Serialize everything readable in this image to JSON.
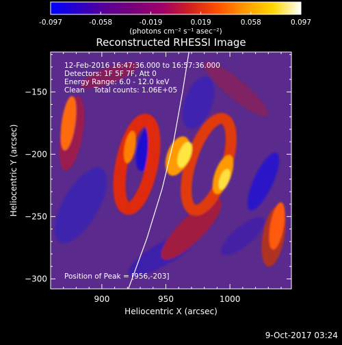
{
  "colorbar": {
    "min": -0.097,
    "max": 0.097,
    "tick_labels": [
      "-0.097",
      "-0.058",
      "-0.019",
      "0.019",
      "0.058",
      "0.097"
    ],
    "unit_label": "(photons cm⁻² s⁻¹ asec⁻²)",
    "gradient_colors": [
      "#0000ff",
      "#2a00c8",
      "#5a0096",
      "#7a0078",
      "#a0006a",
      "#d02020",
      "#ff5000",
      "#ff9a00",
      "#ffd800",
      "#ffffff"
    ]
  },
  "title": "Reconstructed RHESSI Image",
  "overlay": {
    "line1": "12-Feb-2016 16:47:36.000 to 16:57:36.000",
    "line2": "Detectors: 1F 5F 7F, Att 0",
    "line3": "Energy Range: 6.0 - 12.0 keV",
    "line4": "Clean    Total counts: 1.06E+05",
    "peak": "Position of Peak = [956,-203]"
  },
  "axes": {
    "xlabel": "Heliocentric X (arcsec)",
    "ylabel": "Heliocentric Y (arcsec)",
    "xlim": [
      860,
      1048
    ],
    "ylim": [
      -308,
      -118
    ],
    "xticks": [
      900,
      950,
      1000
    ],
    "yticks": [
      -150,
      -200,
      -250,
      -300
    ]
  },
  "timestamp": "9-Oct-2017 03:24",
  "chart_data": {
    "type": "heatmap",
    "title": "Reconstructed RHESSI Image",
    "xlabel": "Heliocentric X (arcsec)",
    "ylabel": "Heliocentric Y (arcsec)",
    "xlim": [
      860,
      1048
    ],
    "ylim": [
      -308,
      -118
    ],
    "xticks": [
      900,
      950,
      1000
    ],
    "yticks": [
      -150,
      -200,
      -250,
      -300
    ],
    "colorbar_range": [
      -0.097,
      0.097
    ],
    "peak_position": [
      956,
      -203
    ],
    "limb_curve": [
      [
        920,
        -310
      ],
      [
        935,
        -268
      ],
      [
        947,
        -228
      ],
      [
        956,
        -190
      ],
      [
        963,
        -150
      ],
      [
        968,
        -118
      ]
    ]
  }
}
